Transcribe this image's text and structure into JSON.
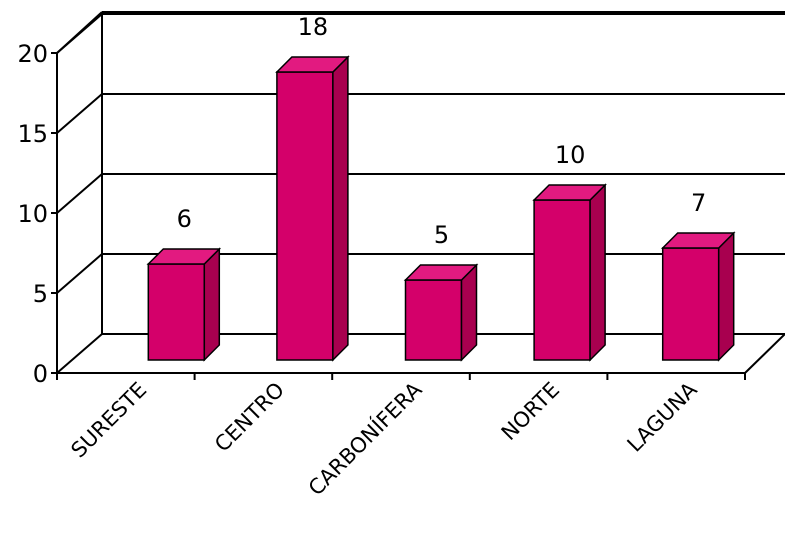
{
  "chart_data": {
    "type": "bar",
    "style": "3d",
    "categories": [
      "SURESTE",
      "CENTRO",
      "CARBONÍFERA",
      "NORTE",
      "LAGUNA"
    ],
    "values": [
      6,
      18,
      5,
      10,
      7
    ],
    "data_labels": [
      "6",
      "18",
      "5",
      "10",
      "7"
    ],
    "yticks": [
      "0",
      "5",
      "10",
      "15",
      "20"
    ],
    "ylim": [
      0,
      20
    ],
    "grid": true,
    "legend": "none",
    "title": "",
    "xlabel": "",
    "ylabel": "",
    "colors": {
      "bar_front": "#d4006a",
      "bar_side": "#a8004f",
      "bar_top": "#e21a80"
    }
  }
}
